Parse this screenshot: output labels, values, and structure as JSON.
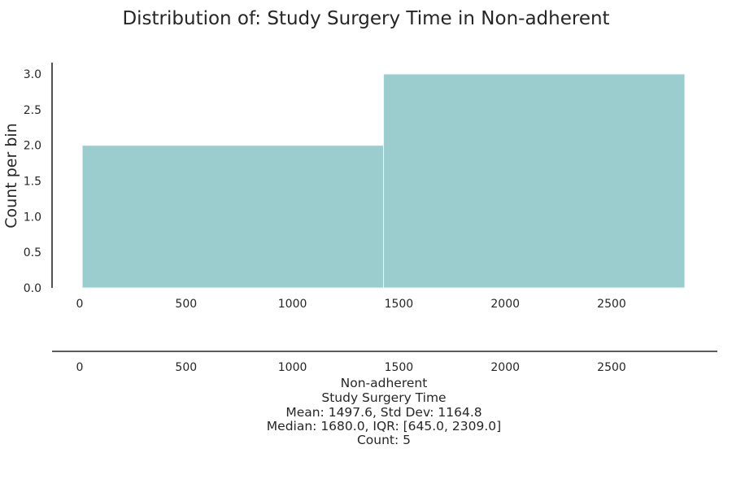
{
  "chart_data": {
    "type": "bar",
    "title": "Distribution of: Study Surgery Time in Non-adherent",
    "ylabel": "Count per bin",
    "xlabel": "",
    "bins": [
      {
        "start": 12,
        "end": 1428,
        "count": 2
      },
      {
        "start": 1428,
        "end": 2844,
        "count": 3
      }
    ],
    "xlim": [
      -120,
      3000
    ],
    "ylim": [
      0,
      3.15
    ],
    "x_ticks": [
      "0",
      "500",
      "1000",
      "1500",
      "2000",
      "2500"
    ],
    "x_tick_values": [
      0,
      500,
      1000,
      1500,
      2000,
      2500
    ],
    "y_ticks": [
      "0.0",
      "0.5",
      "1.0",
      "1.5",
      "2.0",
      "2.5",
      "3.0"
    ],
    "y_tick_values": [
      0,
      0.5,
      1.0,
      1.5,
      2.0,
      2.5,
      3.0
    ],
    "bar_color": "#9bcdcf",
    "grid": false,
    "legend": "none"
  },
  "stats": {
    "group": "Non-adherent",
    "variable": "Study Surgery Time",
    "mean_line": "Mean: 1497.6, Std Dev: 1164.8",
    "median_line": "Median: 1680.0, IQR: [645.0, 2309.0]",
    "count_line": "Count: 5"
  }
}
